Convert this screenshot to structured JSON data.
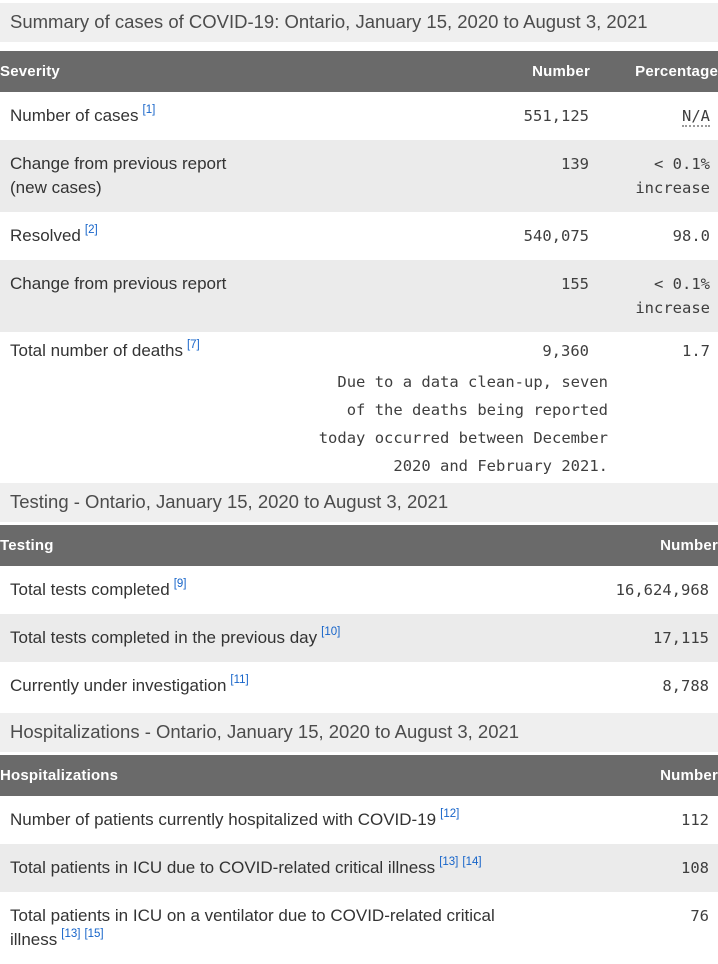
{
  "summary": {
    "heading": "Summary of cases of COVID-19: Ontario, January 15, 2020 to August 3, 2021",
    "columns": {
      "severity": "Severity",
      "number": "Number",
      "percentage": "Percentage"
    },
    "rows": {
      "cases": {
        "label": "Number of cases",
        "ref": "[1]",
        "number": "551,125",
        "percentage": "N/A"
      },
      "change_cases": {
        "label": "Change from previous report (new cases)",
        "number": "139",
        "pct_line1": "< 0.1%",
        "pct_line2": "increase"
      },
      "resolved": {
        "label": "Resolved",
        "ref": "[2]",
        "number": "540,075",
        "percentage": "98.0"
      },
      "change_resolved": {
        "label": "Change from previous report",
        "number": "155",
        "pct_line1": "< 0.1%",
        "pct_line2": "increase"
      },
      "deaths": {
        "label": "Total number of deaths",
        "ref": "[7]",
        "number": "9,360",
        "percentage": "1.7",
        "note_lines": [
          "Due to a data clean-up, seven",
          "of the deaths being reported",
          "today occurred between December",
          "2020 and February 2021."
        ]
      }
    }
  },
  "testing": {
    "heading": "Testing - Ontario, January 15, 2020 to August 3, 2021",
    "columns": {
      "testing": "Testing",
      "number": "Number"
    },
    "rows": {
      "total_tests": {
        "label": "Total tests completed",
        "ref": "[9]",
        "number": "16,624,968"
      },
      "previous_day": {
        "label": "Total tests completed in the previous day",
        "ref": "[10]",
        "number": "17,115"
      },
      "under_investigation": {
        "label": "Currently under investigation",
        "ref": "[11]",
        "number": "8,788"
      }
    }
  },
  "hospitalizations": {
    "heading": "Hospitalizations - Ontario, January 15, 2020 to August 3, 2021",
    "columns": {
      "hospitalizations": "Hospitalizations",
      "number": "Number"
    },
    "rows": {
      "hospitalized": {
        "label": "Number of patients currently hospitalized with COVID-19",
        "ref": "[12]",
        "number": "112"
      },
      "icu": {
        "label": "Total patients in ICU due to COVID-related critical illness",
        "ref1": "[13]",
        "ref2": "[14]",
        "number": "108"
      },
      "ventilator": {
        "label": "Total patients in ICU on a ventilator due to COVID-related critical illness",
        "ref1": "[13]",
        "ref2": "[15]",
        "number": "76"
      }
    }
  },
  "theme": {
    "table_header_bg": "#6a6a6a",
    "table_header_text": "#ffffff",
    "section_heading_bg": "#efefef",
    "stripe_row_bg": "#ebebeb",
    "footnote_link_color": "#1664c9",
    "body_text_color": "#333333"
  }
}
